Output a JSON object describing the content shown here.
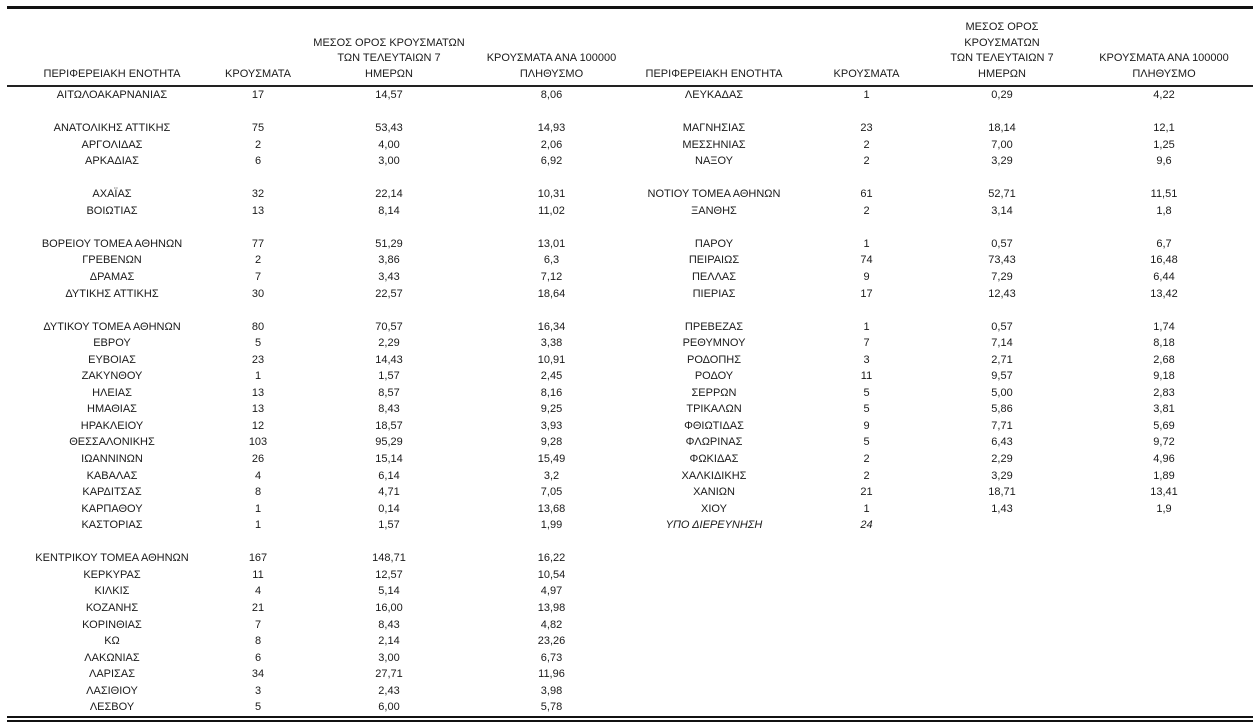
{
  "table": {
    "columns": [
      "ΠΕΡΙΦΕΡΕΙΑΚΗ ΕΝΟΤΗΤΑ",
      "ΚΡΟΥΣΜΑΤΑ",
      "ΜΕΣΟΣ ΟΡΟΣ ΚΡΟΥΣΜΑΤΩΝ\nΤΩΝ ΤΕΛΕΥΤΑΙΩΝ 7\nΗΜΕΡΩΝ",
      "ΚΡΟΥΣΜΑΤΑ ΑΝΑ 100000\nΠΛΗΘΥΣΜΟ"
    ],
    "rows": [
      {
        "l": [
          "ΑΙΤΩΛΟΑΚΑΡΝΑΝΙΑΣ",
          "17",
          "14,57",
          "8,06"
        ],
        "r": [
          "ΛΕΥΚΑΔΑΣ",
          "1",
          "0,29",
          "4,22"
        ]
      },
      {
        "l": null,
        "r": null
      },
      {
        "l": [
          "ΑΝΑΤΟΛΙΚΗΣ ΑΤΤΙΚΗΣ",
          "75",
          "53,43",
          "14,93"
        ],
        "r": [
          "ΜΑΓΝΗΣΙΑΣ",
          "23",
          "18,14",
          "12,1"
        ]
      },
      {
        "l": [
          "ΑΡΓΟΛΙΔΑΣ",
          "2",
          "4,00",
          "2,06"
        ],
        "r": [
          "ΜΕΣΣΗΝΙΑΣ",
          "2",
          "7,00",
          "1,25"
        ]
      },
      {
        "l": [
          "ΑΡΚΑΔΙΑΣ",
          "6",
          "3,00",
          "6,92"
        ],
        "r": [
          "ΝΑΞΟΥ",
          "2",
          "3,29",
          "9,6"
        ]
      },
      {
        "l": null,
        "r": null
      },
      {
        "l": [
          "ΑΧΑΪΑΣ",
          "32",
          "22,14",
          "10,31"
        ],
        "r": [
          "ΝΟΤΙΟΥ ΤΟΜΕΑ ΑΘΗΝΩΝ",
          "61",
          "52,71",
          "11,51"
        ]
      },
      {
        "l": [
          "ΒΟΙΩΤΙΑΣ",
          "13",
          "8,14",
          "11,02"
        ],
        "r": [
          "ΞΑΝΘΗΣ",
          "2",
          "3,14",
          "1,8"
        ]
      },
      {
        "l": null,
        "r": null
      },
      {
        "l": [
          "ΒΟΡΕΙΟΥ ΤΟΜΕΑ ΑΘΗΝΩΝ",
          "77",
          "51,29",
          "13,01"
        ],
        "r": [
          "ΠΑΡΟΥ",
          "1",
          "0,57",
          "6,7"
        ]
      },
      {
        "l": [
          "ΓΡΕΒΕΝΩΝ",
          "2",
          "3,86",
          "6,3"
        ],
        "r": [
          "ΠΕΙΡΑΙΩΣ",
          "74",
          "73,43",
          "16,48"
        ]
      },
      {
        "l": [
          "ΔΡΑΜΑΣ",
          "7",
          "3,43",
          "7,12"
        ],
        "r": [
          "ΠΕΛΛΑΣ",
          "9",
          "7,29",
          "6,44"
        ]
      },
      {
        "l": [
          "ΔΥΤΙΚΗΣ ΑΤΤΙΚΗΣ",
          "30",
          "22,57",
          "18,64"
        ],
        "r": [
          "ΠΙΕΡΙΑΣ",
          "17",
          "12,43",
          "13,42"
        ]
      },
      {
        "l": null,
        "r": null
      },
      {
        "l": [
          "ΔΥΤΙΚΟΥ ΤΟΜΕΑ ΑΘΗΝΩΝ",
          "80",
          "70,57",
          "16,34"
        ],
        "r": [
          "ΠΡΕΒΕΖΑΣ",
          "1",
          "0,57",
          "1,74"
        ]
      },
      {
        "l": [
          "ΕΒΡΟΥ",
          "5",
          "2,29",
          "3,38"
        ],
        "r": [
          "ΡΕΘΥΜΝΟΥ",
          "7",
          "7,14",
          "8,18"
        ]
      },
      {
        "l": [
          "ΕΥΒΟΙΑΣ",
          "23",
          "14,43",
          "10,91"
        ],
        "r": [
          "ΡΟΔΟΠΗΣ",
          "3",
          "2,71",
          "2,68"
        ]
      },
      {
        "l": [
          "ΖΑΚΥΝΘΟΥ",
          "1",
          "1,57",
          "2,45"
        ],
        "r": [
          "ΡΟΔΟΥ",
          "11",
          "9,57",
          "9,18"
        ]
      },
      {
        "l": [
          "ΗΛΕΙΑΣ",
          "13",
          "8,57",
          "8,16"
        ],
        "r": [
          "ΣΕΡΡΩΝ",
          "5",
          "5,00",
          "2,83"
        ]
      },
      {
        "l": [
          "ΗΜΑΘΙΑΣ",
          "13",
          "8,43",
          "9,25"
        ],
        "r": [
          "ΤΡΙΚΑΛΩΝ",
          "5",
          "5,86",
          "3,81"
        ]
      },
      {
        "l": [
          "ΗΡΑΚΛΕΙΟΥ",
          "12",
          "18,57",
          "3,93"
        ],
        "r": [
          "ΦΘΙΩΤΙΔΑΣ",
          "9",
          "7,71",
          "5,69"
        ]
      },
      {
        "l": [
          "ΘΕΣΣΑΛΟΝΙΚΗΣ",
          "103",
          "95,29",
          "9,28"
        ],
        "r": [
          "ΦΛΩΡΙΝΑΣ",
          "5",
          "6,43",
          "9,72"
        ]
      },
      {
        "l": [
          "ΙΩΑΝΝΙΝΩΝ",
          "26",
          "15,14",
          "15,49"
        ],
        "r": [
          "ΦΩΚΙΔΑΣ",
          "2",
          "2,29",
          "4,96"
        ]
      },
      {
        "l": [
          "ΚΑΒΑΛΑΣ",
          "4",
          "6,14",
          "3,2"
        ],
        "r": [
          "ΧΑΛΚΙΔΙΚΗΣ",
          "2",
          "3,29",
          "1,89"
        ]
      },
      {
        "l": [
          "ΚΑΡΔΙΤΣΑΣ",
          "8",
          "4,71",
          "7,05"
        ],
        "r": [
          "ΧΑΝΙΩΝ",
          "21",
          "18,71",
          "13,41"
        ]
      },
      {
        "l": [
          "ΚΑΡΠΑΘΟΥ",
          "1",
          "0,14",
          "13,68"
        ],
        "r": [
          "ΧΙΟΥ",
          "1",
          "1,43",
          "1,9"
        ]
      },
      {
        "l": [
          "ΚΑΣΤΟΡΙΑΣ",
          "1",
          "1,57",
          "1,99"
        ],
        "r": [
          "ΥΠΟ ΔΙΕΡΕΥΝΗΣΗ",
          "24",
          "",
          ""
        ],
        "ri": true
      },
      {
        "l": null,
        "r": null
      },
      {
        "l": [
          "ΚΕΝΤΡΙΚΟΥ ΤΟΜΕΑ ΑΘΗΝΩΝ",
          "167",
          "148,71",
          "16,22"
        ],
        "r": null
      },
      {
        "l": [
          "ΚΕΡΚΥΡΑΣ",
          "11",
          "12,57",
          "10,54"
        ],
        "r": null
      },
      {
        "l": [
          "ΚΙΛΚΙΣ",
          "4",
          "5,14",
          "4,97"
        ],
        "r": null
      },
      {
        "l": [
          "ΚΟΖΑΝΗΣ",
          "21",
          "16,00",
          "13,98"
        ],
        "r": null
      },
      {
        "l": [
          "ΚΟΡΙΝΘΙΑΣ",
          "7",
          "8,43",
          "4,82"
        ],
        "r": null
      },
      {
        "l": [
          "ΚΩ",
          "8",
          "2,14",
          "23,26"
        ],
        "r": null
      },
      {
        "l": [
          "ΛΑΚΩΝΙΑΣ",
          "6",
          "3,00",
          "6,73"
        ],
        "r": null
      },
      {
        "l": [
          "ΛΑΡΙΣΑΣ",
          "34",
          "27,71",
          "11,96"
        ],
        "r": null
      },
      {
        "l": [
          "ΛΑΣΙΘΙΟΥ",
          "3",
          "2,43",
          "3,98"
        ],
        "r": null
      },
      {
        "l": [
          "ΛΕΣΒΟΥ",
          "5",
          "6,00",
          "5,78"
        ],
        "r": null
      }
    ]
  }
}
